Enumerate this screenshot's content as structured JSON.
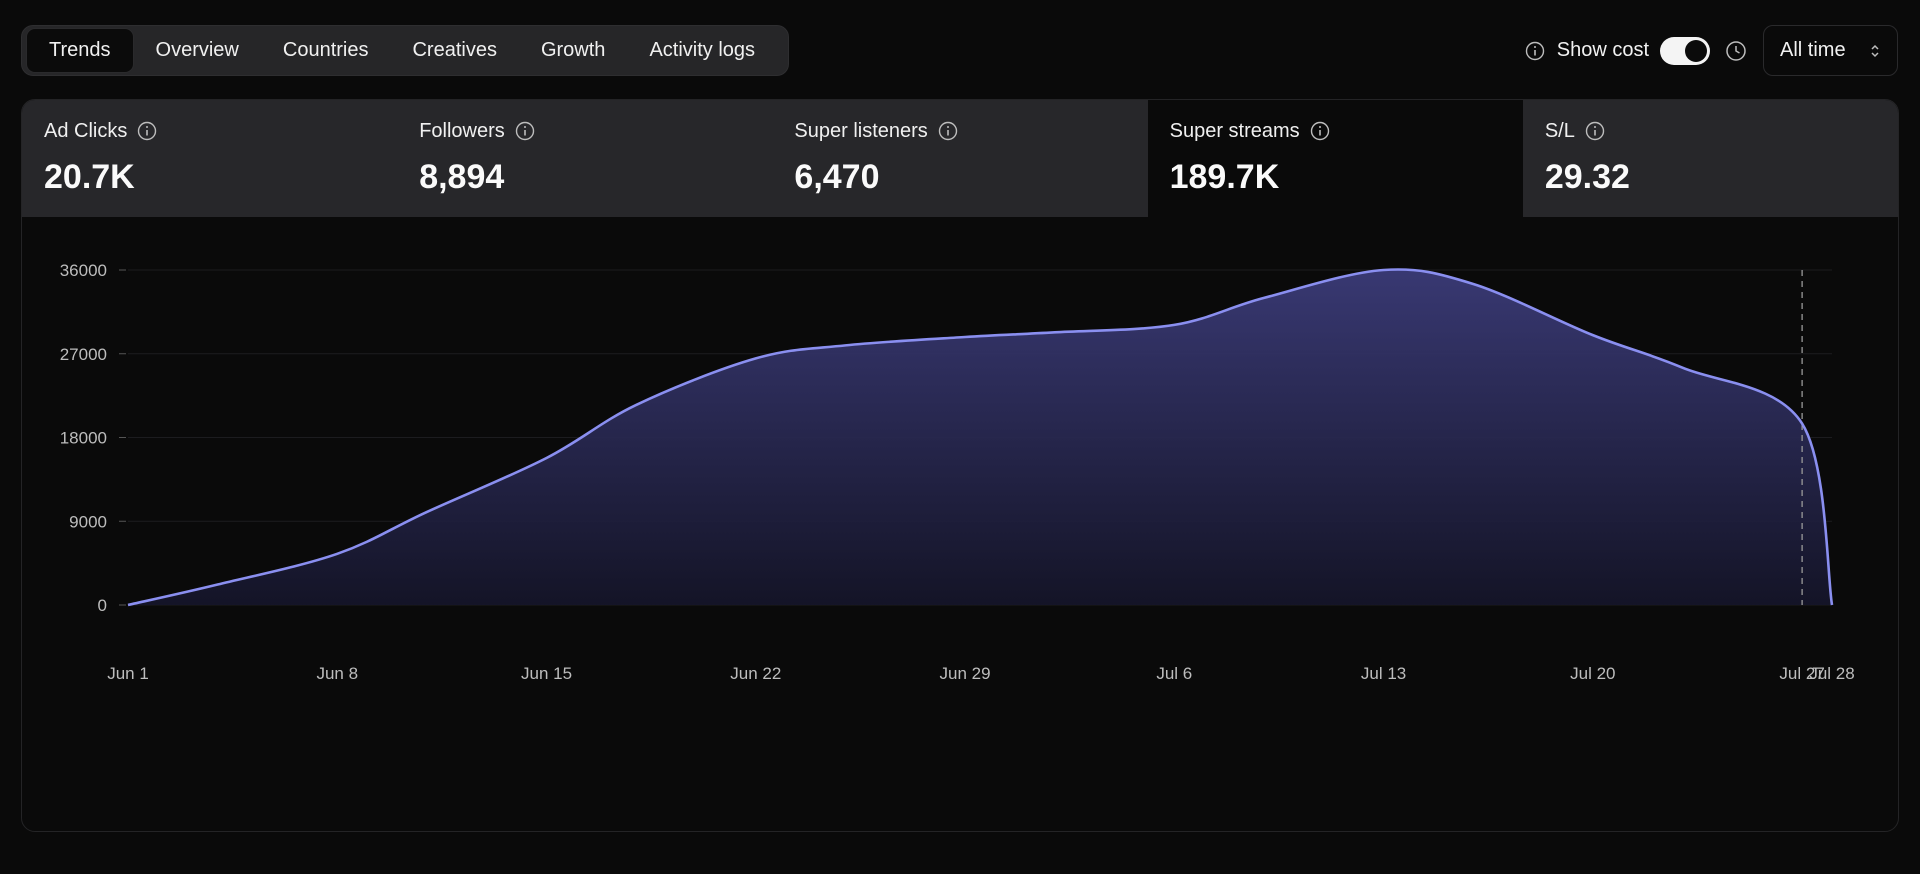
{
  "tabs": [
    {
      "label": "Trends",
      "active": true
    },
    {
      "label": "Overview"
    },
    {
      "label": "Countries"
    },
    {
      "label": "Creatives"
    },
    {
      "label": "Growth"
    },
    {
      "label": "Activity logs"
    }
  ],
  "controls": {
    "show_cost_label": "Show cost",
    "show_cost_enabled": true,
    "range_label": "All time"
  },
  "metrics": [
    {
      "label": "Ad Clicks",
      "value": "20.7K"
    },
    {
      "label": "Followers",
      "value": "8,894"
    },
    {
      "label": "Super listeners",
      "value": "6,470"
    },
    {
      "label": "Super streams",
      "value": "189.7K",
      "active": true
    },
    {
      "label": "S/L",
      "value": "29.32"
    }
  ],
  "colors": {
    "line": "#8a8ff0",
    "area_top": "#3b3b78",
    "area_bottom": "#15152a",
    "background": "#0a0a0a"
  },
  "chart_data": {
    "type": "area",
    "x_ticks": [
      "Jun 1",
      "Jun 8",
      "Jun 15",
      "Jun 22",
      "Jun 29",
      "Jul 6",
      "Jul 13",
      "Jul 20",
      "Jul 27",
      "Jul 28"
    ],
    "y_ticks": [
      0,
      9000,
      18000,
      27000,
      36000
    ],
    "ylim": [
      0,
      36000
    ],
    "grid": true,
    "x": [
      "Jun 1",
      "Jun 4",
      "Jun 8",
      "Jun 11",
      "Jun 15",
      "Jun 18",
      "Jun 22",
      "Jun 25",
      "Jun 29",
      "Jul 2",
      "Jul 6",
      "Jul 9",
      "Jul 13",
      "Jul 16",
      "Jul 20",
      "Jul 23",
      "Jul 27",
      "Jul 28"
    ],
    "y": [
      0,
      2200,
      5500,
      10000,
      15800,
      21500,
      26500,
      27900,
      28800,
      29300,
      30100,
      33000,
      36000,
      34500,
      29000,
      25500,
      19500,
      0
    ],
    "marker_x": "Jul 27"
  }
}
